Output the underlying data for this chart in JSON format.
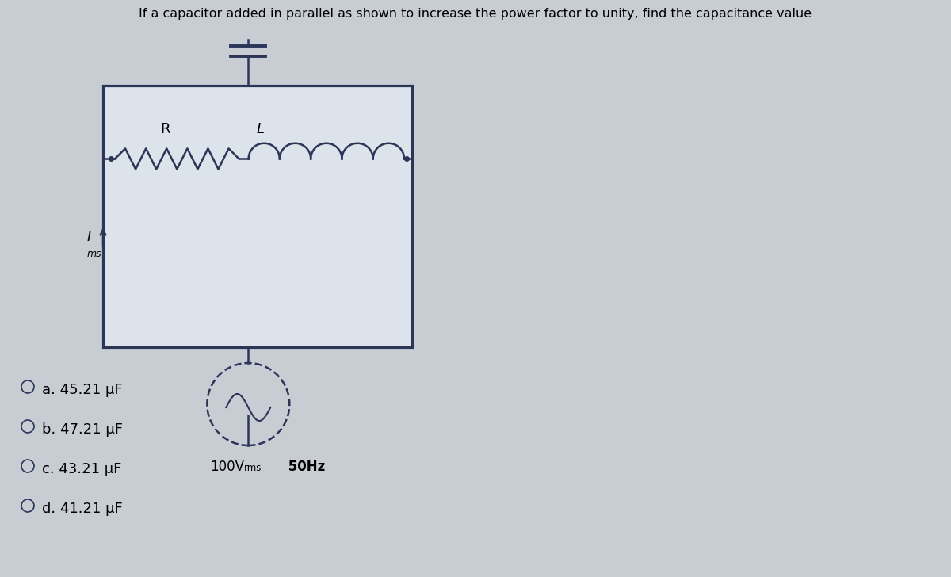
{
  "title": "If a capacitor added in parallel as shown to increase the power factor to unity, find the capacitance value",
  "background_color": "#c8cdd4",
  "circuit_box_color": "#dce3ea",
  "circuit_line_color": "#2a3558",
  "options": [
    "Oa. 45.21 μF",
    "Ob. 47.21 μF",
    "Oc. 43.21 μF",
    "Od. 41.21 μF"
  ],
  "voltage_label": "100V",
  "voltage_sub": "rms",
  "freq_label": " 50Hz",
  "component_R": "R",
  "component_L": "L",
  "title_fontsize": 11.5,
  "options_fontsize": 13,
  "lw": 1.8
}
